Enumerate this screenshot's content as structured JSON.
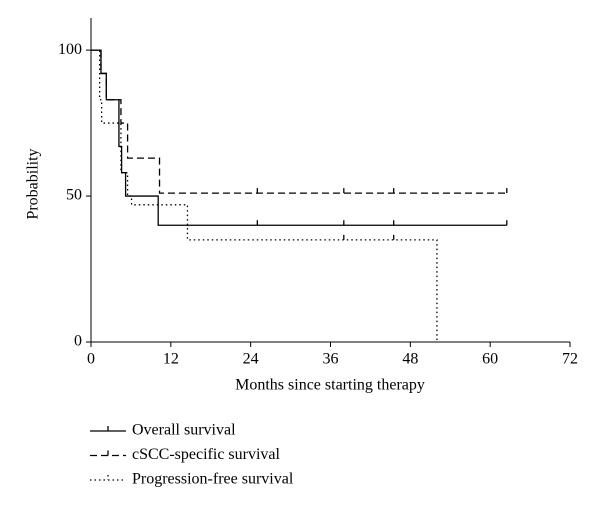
{
  "chart_data": {
    "type": "kaplan-meier",
    "xlabel": "Months since starting therapy",
    "ylabel": "Probability",
    "xlim": [
      0,
      72
    ],
    "xticks": [
      0,
      12,
      24,
      36,
      48,
      60,
      72
    ],
    "ylim": [
      0,
      111
    ],
    "yticks": [
      0,
      50,
      100
    ],
    "series": [
      {
        "name": "Overall survival",
        "color": "#000000",
        "dash": "none",
        "x": [
          0,
          1.5,
          2.3,
          4.2,
          4.6,
          5.2,
          10.1,
          62.5
        ],
        "values": [
          100,
          92,
          83,
          67,
          58,
          50,
          40,
          40
        ],
        "censor_x": [
          25,
          38,
          45.5,
          62.5
        ],
        "censor_y": [
          40,
          40,
          40,
          40
        ]
      },
      {
        "name": "cSCC-specific survival",
        "color": "#000000",
        "dash": "7,4",
        "x": [
          0,
          1.5,
          2.3,
          4.5,
          5.5,
          10.3,
          62.5
        ],
        "values": [
          100,
          92,
          83,
          75,
          63,
          51,
          51
        ],
        "censor_x": [
          25,
          38,
          45.5,
          62.5
        ],
        "censor_y": [
          51,
          51,
          51,
          51
        ]
      },
      {
        "name": "Progression-free survival",
        "color": "#000000",
        "dash": "1.5,3",
        "x": [
          0,
          1.3,
          1.6,
          4.5,
          5.5,
          6.1,
          14.5,
          52
        ],
        "values": [
          100,
          83,
          75,
          58,
          50,
          47,
          35,
          0
        ],
        "censor_x": [
          38,
          45.5
        ],
        "censor_y": [
          35,
          35
        ]
      }
    ]
  }
}
